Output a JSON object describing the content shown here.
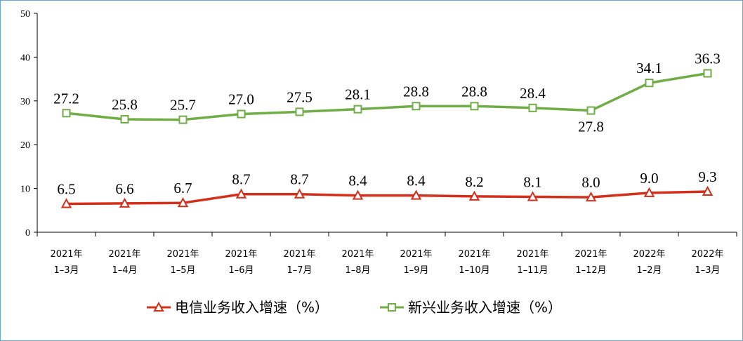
{
  "chart_data": {
    "type": "line",
    "categories": [
      [
        "2021年",
        "1–3月"
      ],
      [
        "2021年",
        "1–4月"
      ],
      [
        "2021年",
        "1–5月"
      ],
      [
        "2021年",
        "1–6月"
      ],
      [
        "2021年",
        "1–7月"
      ],
      [
        "2021年",
        "1–8月"
      ],
      [
        "2021年",
        "1–9月"
      ],
      [
        "2021年",
        "1–10月"
      ],
      [
        "2021年",
        "1–11月"
      ],
      [
        "2021年",
        "1–12月"
      ],
      [
        "2022年",
        "1–2月"
      ],
      [
        "2022年",
        "1–3月"
      ]
    ],
    "series": [
      {
        "name": "电信业务收入增速（%）",
        "color": "#d42f1a",
        "marker": "triangle",
        "values": [
          6.5,
          6.6,
          6.7,
          8.7,
          8.7,
          8.4,
          8.4,
          8.2,
          8.1,
          8.0,
          9.0,
          9.3
        ],
        "labels": [
          "6.5",
          "6.6",
          "6.7",
          "8.7",
          "8.7",
          "8.4",
          "8.4",
          "8.2",
          "8.1",
          "8.0",
          "9.0",
          "9.3"
        ]
      },
      {
        "name": "新兴业务收入增速（%）",
        "color": "#70ad47",
        "marker": "square",
        "values": [
          27.2,
          25.8,
          25.7,
          27.0,
          27.5,
          28.1,
          28.8,
          28.8,
          28.4,
          27.8,
          34.1,
          36.3
        ],
        "labels": [
          "27.2",
          "25.8",
          "25.7",
          "27.0",
          "27.5",
          "28.1",
          "28.8",
          "28.8",
          "28.4",
          "27.8",
          "34.1",
          "36.3"
        ]
      }
    ],
    "y_ticks": [
      "0",
      "10",
      "20",
      "30",
      "40",
      "50"
    ],
    "ylim": [
      0,
      50
    ],
    "grid": false,
    "legend_position": "bottom"
  }
}
